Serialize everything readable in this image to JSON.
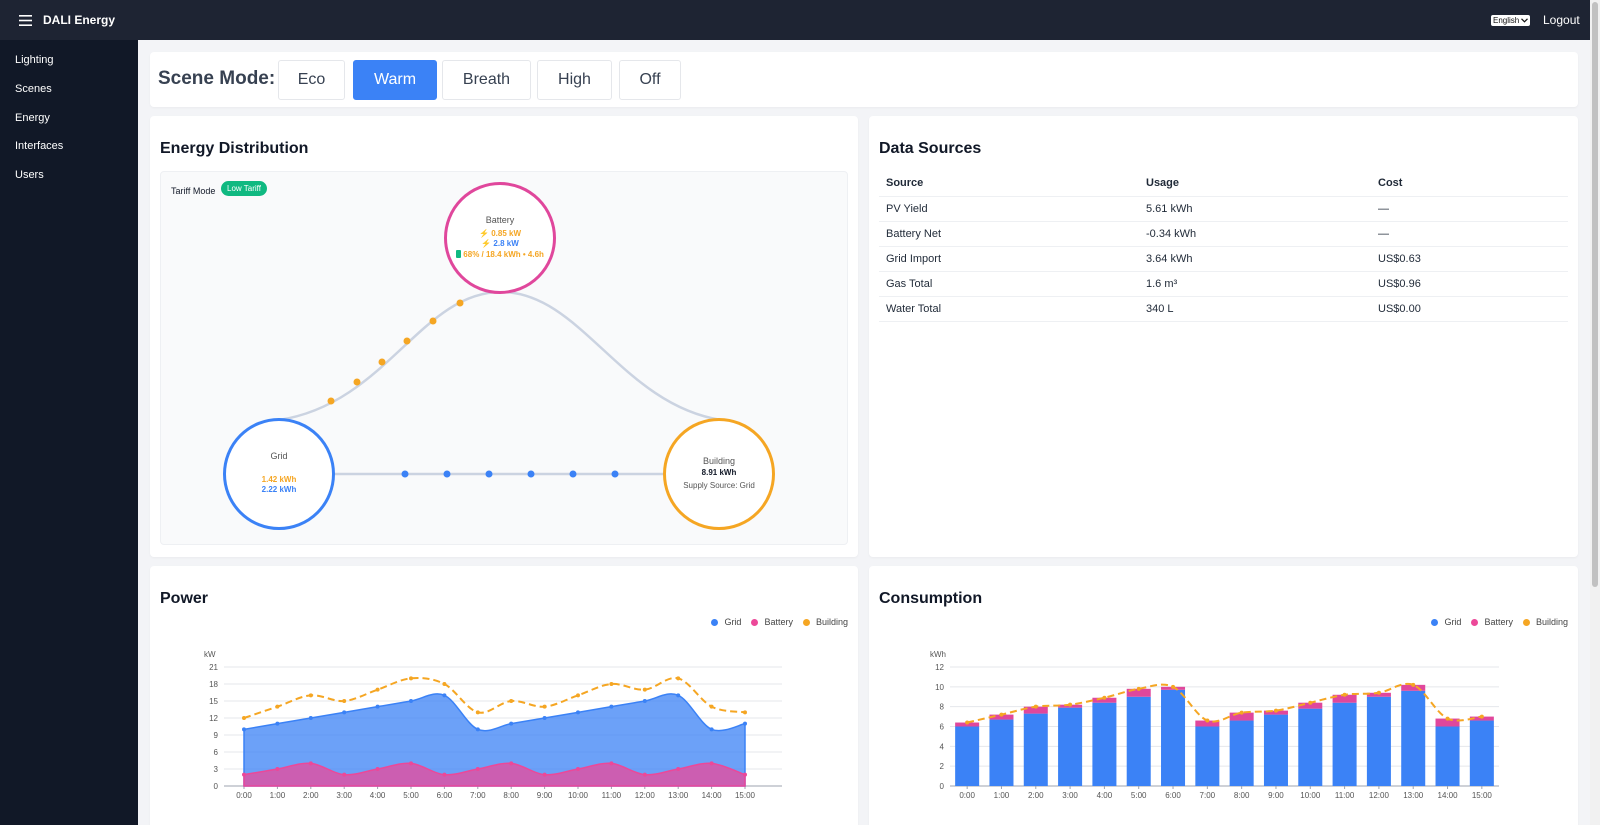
{
  "header": {
    "app_title": "DALI Energy",
    "language": "English",
    "logout_label": "Logout"
  },
  "sidebar": {
    "items": [
      {
        "label": "Lighting"
      },
      {
        "label": "Scenes"
      },
      {
        "label": "Energy"
      },
      {
        "label": "Interfaces"
      },
      {
        "label": "Users"
      }
    ]
  },
  "scene": {
    "label": "Scene Mode:",
    "modes": [
      {
        "label": "Eco"
      },
      {
        "label": "Warm"
      },
      {
        "label": "Breath"
      },
      {
        "label": "High"
      },
      {
        "label": "Off"
      }
    ],
    "active": "Warm"
  },
  "energy_distribution": {
    "title": "Energy Distribution",
    "tariff_label": "Tariff Mode",
    "tariff_badge": "Low Tariff",
    "battery": {
      "name": "Battery",
      "line1": "0.85 kW",
      "line2": "2.8 kW",
      "line3": "68% / 18.4 kWh • 4.6h"
    },
    "grid": {
      "name": "Grid",
      "line1": "1.42 kWh",
      "line2": "2.22 kWh"
    },
    "building": {
      "name": "Building",
      "value": "8.91 kWh",
      "supply": "Supply Source: Grid"
    }
  },
  "data_sources": {
    "title": "Data Sources",
    "columns": [
      "Source",
      "Usage",
      "Cost"
    ],
    "rows": [
      [
        "PV Yield",
        "5.61 kWh",
        "—"
      ],
      [
        "Battery Net",
        "-0.34 kWh",
        "—"
      ],
      [
        "Grid Import",
        "3.64 kWh",
        "US$0.63"
      ],
      [
        "Gas Total",
        "1.6 m³",
        "US$0.96"
      ],
      [
        "Water Total",
        "340 L",
        "US$0.00"
      ]
    ]
  },
  "colors": {
    "grid": "#3b82f6",
    "battery": "#ec4899",
    "building": "#f5a623",
    "accent": "#3b82f6",
    "tariff": "#10b981"
  },
  "power": {
    "title": "Power",
    "legend": [
      "Grid",
      "Battery",
      "Building"
    ]
  },
  "consumption": {
    "title": "Consumption",
    "legend": [
      "Grid",
      "Battery",
      "Building"
    ]
  },
  "chart_data": [
    {
      "type": "area",
      "title": "Power",
      "ylabel": "kW",
      "ylim": [
        0,
        21
      ],
      "yticks": [
        0,
        3,
        6,
        9,
        12,
        15,
        18,
        21
      ],
      "categories": [
        "0:00",
        "1:00",
        "2:00",
        "3:00",
        "4:00",
        "5:00",
        "6:00",
        "7:00",
        "8:00",
        "9:00",
        "10:00",
        "11:00",
        "12:00",
        "13:00",
        "14:00",
        "15:00"
      ],
      "legend_position": "top-right",
      "grid": true,
      "series": [
        {
          "name": "Grid",
          "values": [
            10,
            11,
            12,
            13,
            14,
            15,
            16,
            10,
            11,
            12,
            13,
            14,
            15,
            16,
            10,
            11
          ]
        },
        {
          "name": "Battery",
          "values": [
            2,
            3,
            4,
            2,
            3,
            4,
            2,
            3,
            4,
            2,
            3,
            4,
            2,
            3,
            4,
            2
          ]
        },
        {
          "name": "Building",
          "values": [
            12,
            14,
            16,
            15,
            17,
            19,
            18,
            13,
            15,
            14,
            16,
            18,
            17,
            19,
            14,
            13
          ]
        }
      ]
    },
    {
      "type": "bar",
      "title": "Consumption",
      "ylabel": "kWh",
      "ylim": [
        0,
        12
      ],
      "yticks": [
        0,
        2,
        4,
        6,
        8,
        10,
        12
      ],
      "categories": [
        "0:00",
        "1:00",
        "2:00",
        "3:00",
        "4:00",
        "5:00",
        "6:00",
        "7:00",
        "8:00",
        "9:00",
        "10:00",
        "11:00",
        "12:00",
        "13:00",
        "14:00",
        "15:00"
      ],
      "legend_position": "top-right",
      "grid": true,
      "series": [
        {
          "name": "Grid",
          "values": [
            6.0,
            6.7,
            7.3,
            7.9,
            8.4,
            9.0,
            9.7,
            6.0,
            6.6,
            7.2,
            7.8,
            8.4,
            9.0,
            9.6,
            6.0,
            6.6
          ]
        },
        {
          "name": "Battery",
          "values": [
            0.4,
            0.5,
            0.7,
            0.3,
            0.5,
            0.8,
            0.3,
            0.6,
            0.8,
            0.4,
            0.6,
            0.8,
            0.4,
            0.6,
            0.8,
            0.4
          ]
        },
        {
          "name": "Building",
          "values": [
            6.4,
            7.2,
            8.0,
            8.2,
            8.9,
            9.8,
            10.0,
            6.6,
            7.4,
            7.6,
            8.4,
            9.2,
            9.4,
            10.2,
            6.8,
            7.0
          ]
        }
      ]
    }
  ]
}
